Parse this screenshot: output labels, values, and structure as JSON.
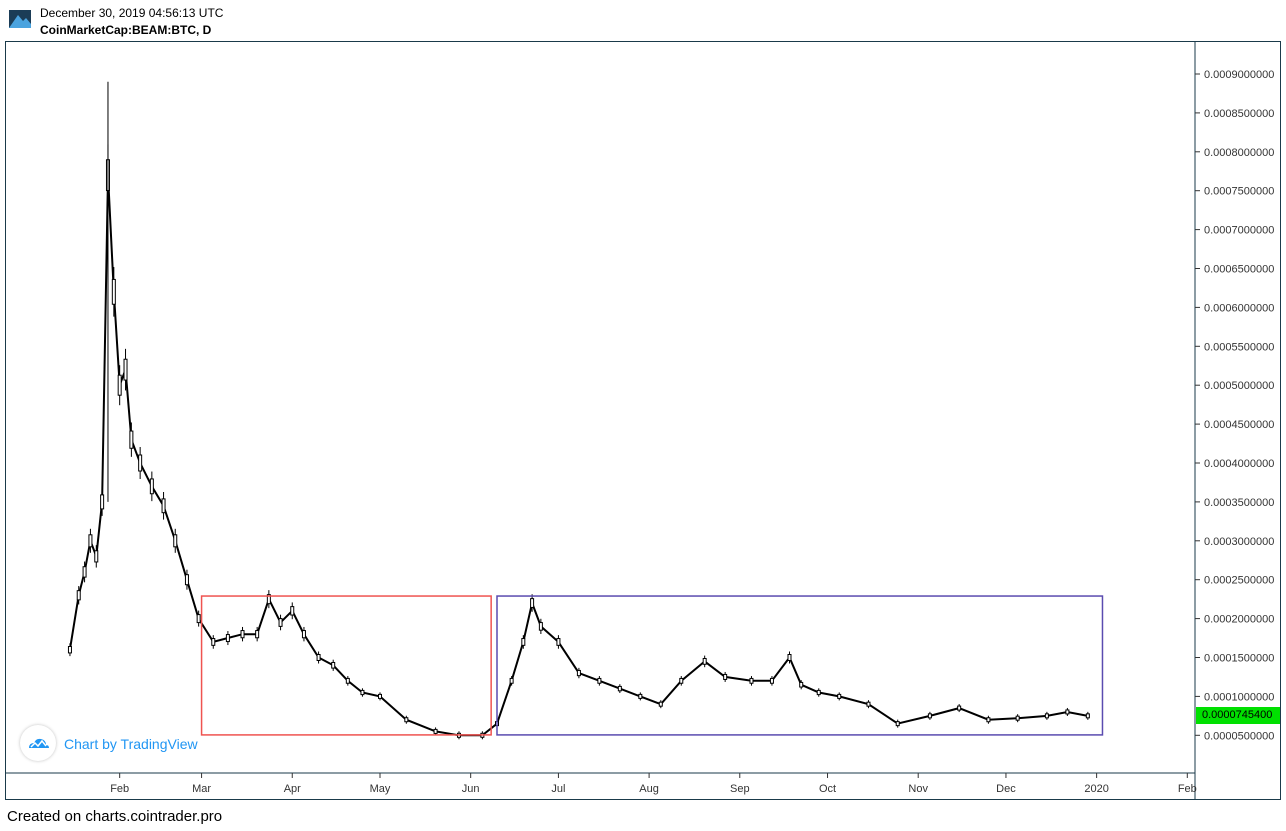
{
  "header": {
    "timestamp": "December 30, 2019 04:56:13 UTC",
    "symbol": "CoinMarketCap:BEAM:BTC, D"
  },
  "footer": {
    "text": "Created on charts.cointrader.pro"
  },
  "watermark": {
    "text": "Chart by TradingView",
    "icon": "tradingview-cloud-icon"
  },
  "last_price_label": "0.0000745400",
  "colors": {
    "candles": "#000000",
    "red_box": "#ef5350",
    "purple_box": "#5a4bb0",
    "last_price_bg": "#00e000",
    "watermark": "#2196f3"
  },
  "chart_data": {
    "type": "candlestick",
    "title": "CoinMarketCap:BEAM:BTC, D",
    "xlabel": "",
    "ylabel": "",
    "ylim": [
      0.0,
      0.0009
    ],
    "x_ticks": [
      "Feb",
      "Mar",
      "Apr",
      "May",
      "Jun",
      "Jul",
      "Aug",
      "Sep",
      "Oct",
      "Nov",
      "Dec",
      "2020",
      "Feb"
    ],
    "y_ticks": [
      "0.0009000000",
      "0.0008500000",
      "0.0008000000",
      "0.0007500000",
      "0.0007000000",
      "0.0006500000",
      "0.0006000000",
      "0.0005500000",
      "0.0005000000",
      "0.0004500000",
      "0.0004000000",
      "0.0003500000",
      "0.0003000000",
      "0.0002500000",
      "0.0002000000",
      "0.0001500000",
      "0.0001000000",
      "0.0000500000"
    ],
    "series": [
      {
        "x": [
          "2019-01-15",
          "2019-01-18",
          "2019-01-20",
          "2019-01-22",
          "2019-01-24",
          "2019-01-26",
          "2019-01-28",
          "2019-01-30",
          "2019-02-01",
          "2019-02-03",
          "2019-02-05",
          "2019-02-08",
          "2019-02-12",
          "2019-02-16",
          "2019-02-20",
          "2019-02-24",
          "2019-02-28",
          "2019-03-05",
          "2019-03-10",
          "2019-03-15",
          "2019-03-20",
          "2019-03-24",
          "2019-03-28",
          "2019-04-01",
          "2019-04-05",
          "2019-04-10",
          "2019-04-15",
          "2019-04-20",
          "2019-04-25",
          "2019-05-01",
          "2019-05-10",
          "2019-05-20",
          "2019-05-28",
          "2019-06-05",
          "2019-06-10",
          "2019-06-15",
          "2019-06-19",
          "2019-06-22",
          "2019-06-25",
          "2019-07-01",
          "2019-07-08",
          "2019-07-15",
          "2019-07-22",
          "2019-07-29",
          "2019-08-05",
          "2019-08-12",
          "2019-08-20",
          "2019-08-27",
          "2019-09-05",
          "2019-09-12",
          "2019-09-18",
          "2019-09-22",
          "2019-09-28",
          "2019-10-05",
          "2019-10-15",
          "2019-10-25",
          "2019-11-05",
          "2019-11-15",
          "2019-11-25",
          "2019-12-05",
          "2019-12-15",
          "2019-12-22",
          "2019-12-29"
        ],
        "y": [
          0.00016,
          0.00023,
          0.00026,
          0.0003,
          0.00028,
          0.00035,
          0.00077,
          0.00062,
          0.0005,
          0.00052,
          0.00043,
          0.0004,
          0.00037,
          0.000345,
          0.0003,
          0.00025,
          0.0002,
          0.00017,
          0.000175,
          0.00018,
          0.00018,
          0.000225,
          0.000195,
          0.00021,
          0.00018,
          0.00015,
          0.00014,
          0.00012,
          0.000105,
          0.0001,
          7e-05,
          5.5e-05,
          5e-05,
          5e-05,
          6.5e-05,
          0.00012,
          0.00017,
          0.00022,
          0.00019,
          0.00017,
          0.00013,
          0.00012,
          0.00011,
          0.0001,
          9e-05,
          0.00012,
          0.000145,
          0.000125,
          0.00012,
          0.00012,
          0.00015,
          0.000115,
          0.000105,
          0.0001,
          9e-05,
          6.5e-05,
          7.5e-05,
          8.5e-05,
          7e-05,
          7.2e-05,
          7.5e-05,
          8e-05,
          7.5e-05
        ]
      }
    ],
    "annotations": [
      {
        "type": "rectangle",
        "color": "red",
        "x_range": [
          "2019-03-01",
          "2019-06-08"
        ],
        "y_range": [
          5.05e-05,
          0.000229
        ]
      },
      {
        "type": "rectangle",
        "color": "purple",
        "x_range": [
          "2019-06-10",
          "2020-01-03"
        ],
        "y_range": [
          5.05e-05,
          0.000229
        ]
      }
    ],
    "grid": false,
    "legend": "none"
  }
}
